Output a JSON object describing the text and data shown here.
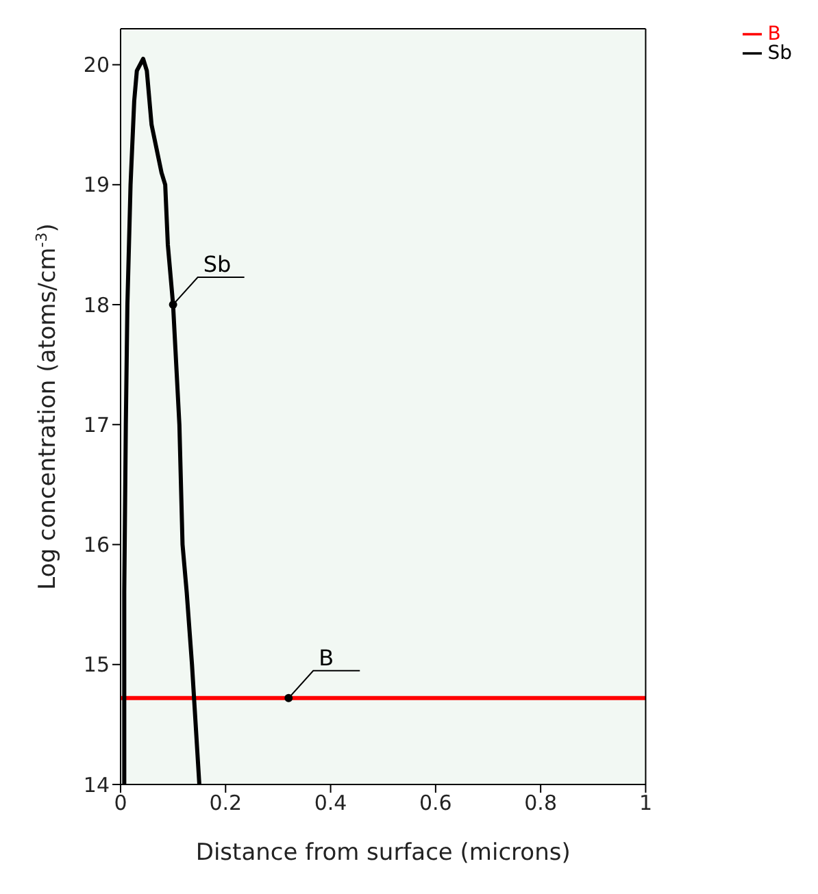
{
  "chart_data": {
    "type": "line",
    "xlabel": "Distance from surface (microns)",
    "ylabel": "Log concentration (atoms/cm$^{-3}$)",
    "xlim": [
      0,
      1
    ],
    "xticks": [
      0,
      0.2,
      0.4,
      0.6,
      0.8,
      1
    ],
    "ylim": [
      14,
      20.3
    ],
    "yticks": [
      14,
      15,
      16,
      17,
      18,
      19,
      20
    ],
    "series": [
      {
        "name": "B",
        "color": "#ff0000",
        "x": [
          0,
          1
        ],
        "values": [
          14.72,
          14.72
        ]
      },
      {
        "name": "Sb",
        "color": "#000000",
        "x": [
          0.007,
          0.007,
          0.01,
          0.013,
          0.019,
          0.026,
          0.031,
          0.043,
          0.05,
          0.059,
          0.078,
          0.085,
          0.09,
          0.1,
          0.112,
          0.118,
          0.126,
          0.136,
          0.15
        ],
        "values": [
          14,
          15.6,
          17,
          18,
          19,
          19.7,
          19.95,
          20.05,
          19.95,
          19.5,
          19.1,
          19,
          18.5,
          18,
          17,
          16,
          15.6,
          15,
          14
        ]
      }
    ],
    "annotations": [
      {
        "text": "Sb",
        "x": 0.1,
        "y": 18
      },
      {
        "text": "B",
        "x": 0.32,
        "y": 14.72
      }
    ],
    "legend": "top right",
    "marker": "none",
    "line_style": "solid",
    "grid": false
  }
}
